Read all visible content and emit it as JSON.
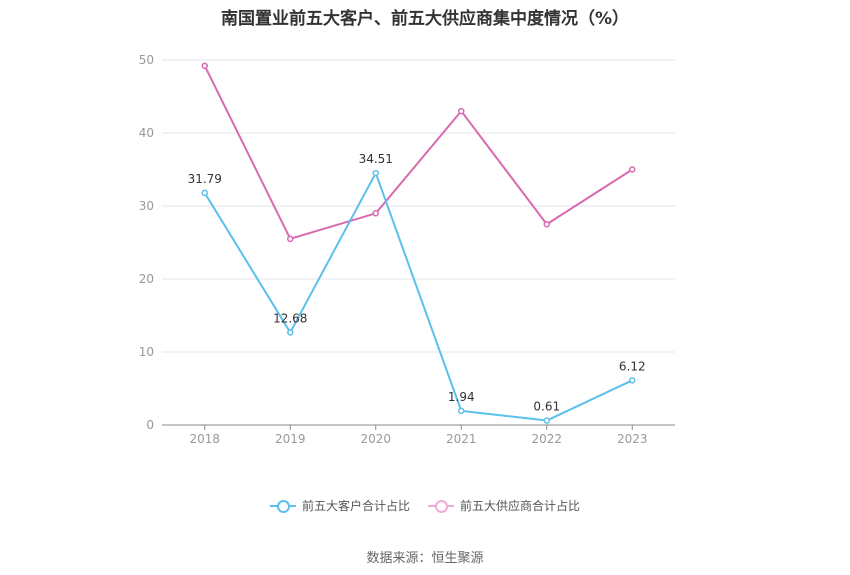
{
  "chart_data": {
    "type": "line",
    "title": "南国置业前五大客户、前五大供应商集中度情况（%）",
    "categories": [
      "2018",
      "2019",
      "2020",
      "2021",
      "2022",
      "2023"
    ],
    "series": [
      {
        "name": "前五大客户合计占比",
        "values": [
          31.79,
          12.68,
          34.51,
          1.94,
          0.61,
          6.12
        ],
        "color": "#5bc0ec",
        "labels": [
          "31.79",
          "12.68",
          "34.51",
          "1.94",
          "0.61",
          "6.12"
        ]
      },
      {
        "name": "前五大供应商合计占比",
        "values": [
          49.2,
          25.5,
          29.0,
          43.0,
          27.5,
          35.0
        ],
        "color": "#d96ab0"
      }
    ],
    "ylim": [
      0,
      50
    ],
    "yticks": [
      "0",
      "10",
      "20",
      "30",
      "40",
      "50"
    ],
    "grid": true,
    "legend_position": "bottom"
  },
  "source": "数据来源：恒生聚源"
}
